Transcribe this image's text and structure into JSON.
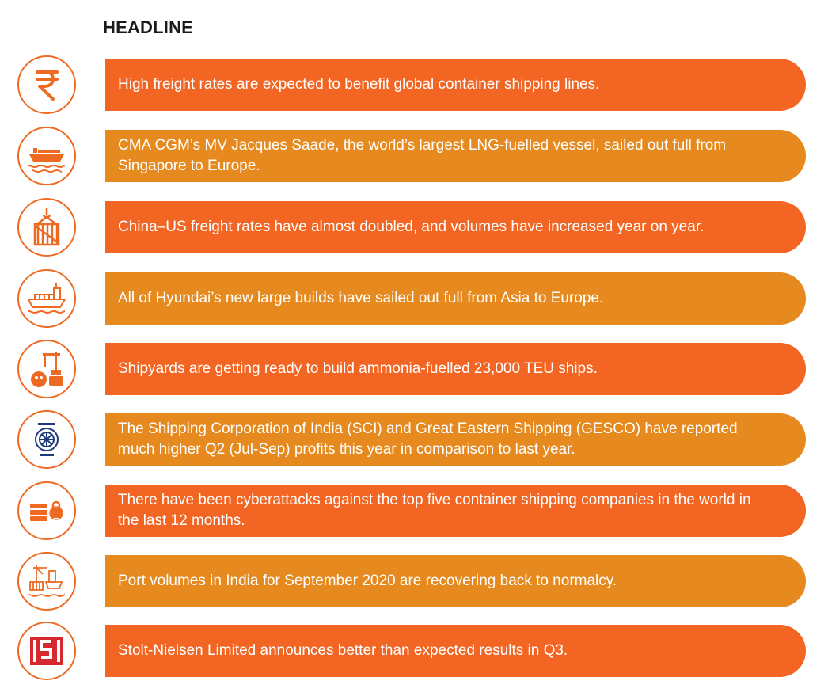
{
  "heading": "HEADLINE",
  "colors": {
    "orange": "#f26522",
    "amber": "#e68a1f",
    "icon_stroke": "#ee6a23"
  },
  "items": [
    {
      "icon": "rupee-icon",
      "text": "High freight rates are expected to benefit global container shipping lines."
    },
    {
      "icon": "container-ship-icon",
      "text": "CMA CGM’s MV Jacques Saade, the world’s largest LNG-fuelled vessel, sailed out full from Singapore to Europe."
    },
    {
      "icon": "crane-crate-icon",
      "text": "China–US freight rates have almost doubled, and volumes have increased year on year."
    },
    {
      "icon": "cargo-ship-icon",
      "text": "All of Hyundai’s new large builds have sailed out full from Asia to Europe."
    },
    {
      "icon": "shipyard-icon",
      "text": "Shipyards are getting ready to build ammonia-fuelled 23,000 TEU ships."
    },
    {
      "icon": "sci-logo-icon",
      "text": "The Shipping Corporation of India (SCI) and Great Eastern Shipping (GESCO) have reported much higher Q2 (Jul-Sep) profits this year in comparison to last year."
    },
    {
      "icon": "cyber-security-icon",
      "text": "There have been cyberattacks against the top five container shipping companies in the world in the last 12 months."
    },
    {
      "icon": "port-icon",
      "text": "Port volumes in India for September 2020 are recovering back to normalcy."
    },
    {
      "icon": "stolt-nielsen-logo-icon",
      "text": "Stolt-Nielsen Limited announces better than expected results in Q3."
    }
  ]
}
